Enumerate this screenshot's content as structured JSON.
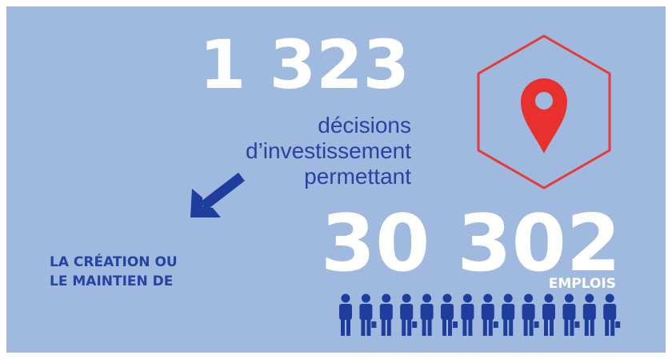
{
  "stat1": {
    "value": "1 323",
    "lines": [
      "décisions",
      "d’investissement",
      "permettant"
    ]
  },
  "left_text": [
    "LA CRÉATION OU",
    "LE MAINTIEN DE"
  ],
  "stat2": {
    "value": "30 302",
    "unit": "EMPLOIS"
  }
}
